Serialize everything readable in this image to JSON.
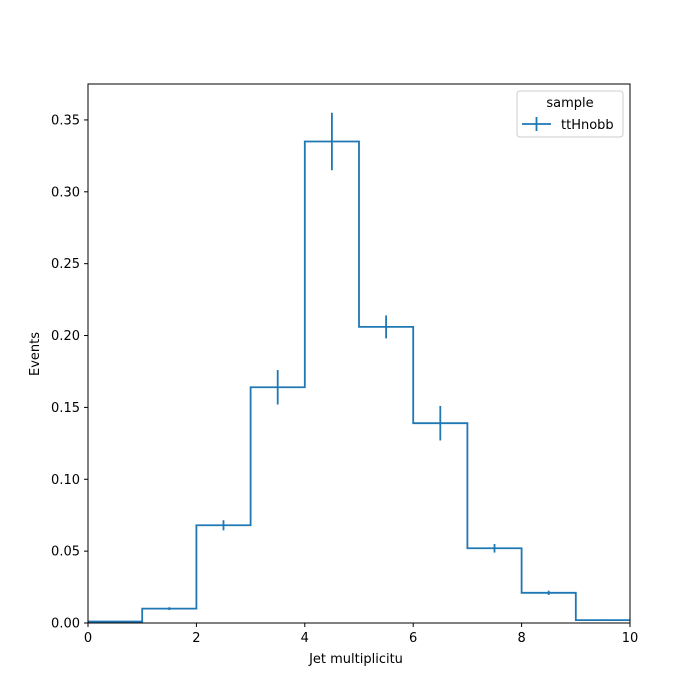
{
  "chart_data": {
    "type": "histogram",
    "title": "",
    "xlabel": "Jet multiplicitu",
    "ylabel": "Events",
    "xlim": [
      0,
      10
    ],
    "ylim": [
      0,
      0.375
    ],
    "xticks": [
      0,
      2,
      4,
      6,
      8,
      10
    ],
    "xtick_labels": [
      "0",
      "2",
      "4",
      "6",
      "8",
      "10"
    ],
    "yticks": [
      0.0,
      0.05,
      0.1,
      0.15,
      0.2,
      0.25,
      0.3,
      0.35
    ],
    "ytick_labels": [
      "0.00",
      "0.05",
      "0.10",
      "0.15",
      "0.20",
      "0.25",
      "0.30",
      "0.35"
    ],
    "grid": false,
    "legend": {
      "title": "sample",
      "position": "top-right"
    },
    "bin_edges": [
      0,
      1,
      2,
      3,
      4,
      5,
      6,
      7,
      8,
      9,
      10
    ],
    "series": [
      {
        "name": "ttHnobb",
        "color": "#1f77b4",
        "values": [
          0.001,
          0.01,
          0.068,
          0.164,
          0.335,
          0.206,
          0.139,
          0.052,
          0.021,
          0.002
        ],
        "errors": [
          0.0003,
          0.001,
          0.0035,
          0.012,
          0.02,
          0.008,
          0.012,
          0.003,
          0.0015,
          0.0005
        ]
      }
    ]
  }
}
